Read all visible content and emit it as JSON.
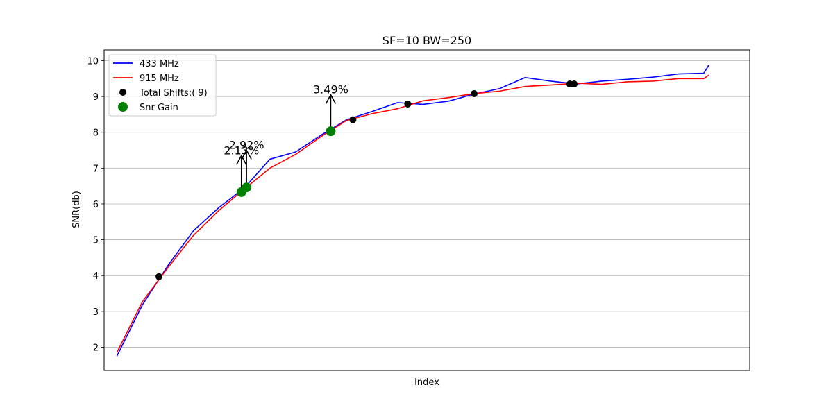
{
  "chart_data": {
    "type": "line",
    "title": "SF=10   BW=250",
    "xlabel": "Index",
    "ylabel": "SNR(db)",
    "ylim": [
      1.35,
      10.3
    ],
    "xlim": [
      -0.5,
      24.8
    ],
    "yticks": [
      2,
      3,
      4,
      5,
      6,
      7,
      8,
      9,
      10
    ],
    "xticks_shown": false,
    "grid": "horizontal",
    "legend_position": "top-left",
    "legend": [
      {
        "label": "433 MHz",
        "kind": "line",
        "color": "#0000ff"
      },
      {
        "label": "915 MHz",
        "kind": "line",
        "color": "#ff0000"
      },
      {
        "label": "Total Shifts:( 9)",
        "kind": "dot",
        "color": "#000000"
      },
      {
        "label": "Snr Gain",
        "kind": "dot-large",
        "color": "#008000"
      }
    ],
    "x": [
      0,
      1,
      2,
      3,
      4,
      5,
      6,
      7,
      8,
      9,
      10,
      11,
      12,
      13,
      14,
      15,
      16,
      17,
      18,
      19,
      20,
      21,
      22,
      23
    ],
    "series": [
      {
        "name": "433 MHz",
        "color": "#0000ff",
        "values": [
          1.75,
          3.18,
          4.28,
          5.25,
          5.9,
          6.45,
          7.25,
          7.45,
          7.92,
          8.35,
          8.58,
          8.83,
          8.78,
          8.87,
          9.07,
          9.22,
          9.53,
          9.43,
          9.35,
          9.43,
          9.48,
          9.54,
          9.63,
          9.65
        ]
      },
      {
        "name": "915 MHz",
        "color": "#ff0000",
        "values": [
          1.85,
          3.27,
          4.22,
          5.12,
          5.82,
          6.42,
          7.0,
          7.38,
          7.88,
          8.33,
          8.52,
          8.66,
          8.88,
          8.97,
          9.08,
          9.15,
          9.28,
          9.32,
          9.37,
          9.34,
          9.41,
          9.43,
          9.5,
          9.5
        ]
      }
    ],
    "series_end": {
      "x": 23.2,
      "v433": 9.88,
      "v915": 9.6
    },
    "shift_points": [
      {
        "x": 1.65,
        "y": 3.97
      },
      {
        "x": 9.25,
        "y": 8.35
      },
      {
        "x": 11.4,
        "y": 8.79
      },
      {
        "x": 14.0,
        "y": 9.08
      },
      {
        "x": 17.75,
        "y": 9.35
      },
      {
        "x": 17.92,
        "y": 9.35
      }
    ],
    "gain_points": [
      {
        "x": 4.88,
        "y": 6.33,
        "label": "2.13%",
        "arrow_top": 7.35
      },
      {
        "x": 5.08,
        "y": 6.46,
        "label": "2.92%",
        "arrow_top": 7.5
      },
      {
        "x": 8.38,
        "y": 8.03,
        "label": "3.49%",
        "arrow_top": 9.05
      }
    ]
  }
}
